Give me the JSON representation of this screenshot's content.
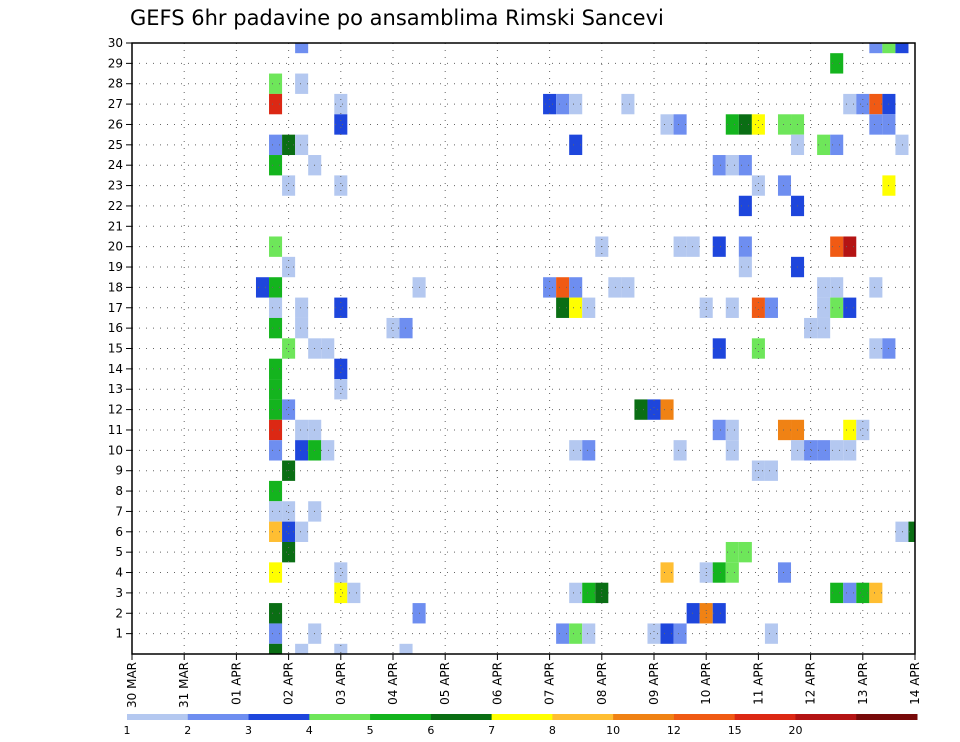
{
  "chart_data": {
    "type": "heatmap",
    "title": "GEFS 6hr padavine po ansamblima Rimski Sancevi",
    "xlabel": "",
    "ylabel": "",
    "x_tick_labels": [
      "30 MAR",
      "31 MAR",
      "01 APR",
      "02 APR",
      "03 APR",
      "04 APR",
      "05 APR",
      "06 APR",
      "07 APR",
      "08 APR",
      "09 APR",
      "10 APR",
      "11 APR",
      "12 APR",
      "13 APR",
      "14 APR"
    ],
    "x_unit": "6-hour step",
    "x_range": [
      0,
      60
    ],
    "y_tick_labels": [
      "1",
      "2",
      "3",
      "4",
      "5",
      "6",
      "7",
      "8",
      "9",
      "10",
      "11",
      "12",
      "13",
      "14",
      "15",
      "16",
      "17",
      "18",
      "19",
      "20",
      "21",
      "22",
      "23",
      "24",
      "25",
      "26",
      "27",
      "28",
      "29",
      "30"
    ],
    "y_range": [
      0,
      30
    ],
    "grid": true,
    "legend_placement": "bottom",
    "color_levels": [
      {
        "label": "1",
        "color": "#b4c8f0"
      },
      {
        "label": "2",
        "color": "#6e8ef0"
      },
      {
        "label": "3",
        "color": "#1e46dc"
      },
      {
        "label": "4",
        "color": "#6ee65a"
      },
      {
        "label": "5",
        "color": "#14b41e"
      },
      {
        "label": "6",
        "color": "#0a6e14"
      },
      {
        "label": "7",
        "color": "#ffff00"
      },
      {
        "label": "8",
        "color": "#ffbe32"
      },
      {
        "label": "10",
        "color": "#f08214"
      },
      {
        "label": "12",
        "color": "#f05a14"
      },
      {
        "label": "15",
        "color": "#dc2814"
      },
      {
        "label": "20",
        "color": "#b41414"
      },
      {
        "label": "",
        "color": "#780a0a"
      }
    ],
    "cells_note": "each cell: [member, 6h step index, level index into color_levels]",
    "cells": [
      [
        30,
        13,
        1
      ],
      [
        30,
        57,
        1
      ],
      [
        30,
        58,
        3
      ],
      [
        30,
        59,
        2
      ],
      [
        29,
        54,
        4
      ],
      [
        28,
        11,
        3
      ],
      [
        28,
        13,
        0
      ],
      [
        27,
        11,
        10
      ],
      [
        27,
        16,
        0
      ],
      [
        27,
        32,
        2
      ],
      [
        27,
        33,
        1
      ],
      [
        27,
        34,
        0
      ],
      [
        27,
        38,
        0
      ],
      [
        27,
        55,
        0
      ],
      [
        27,
        56,
        1
      ],
      [
        27,
        57,
        9
      ],
      [
        27,
        58,
        2
      ],
      [
        26,
        16,
        2
      ],
      [
        26,
        41,
        0
      ],
      [
        26,
        42,
        1
      ],
      [
        26,
        46,
        4
      ],
      [
        26,
        47,
        5
      ],
      [
        26,
        48,
        6
      ],
      [
        26,
        50,
        3
      ],
      [
        26,
        51,
        3
      ],
      [
        26,
        57,
        1
      ],
      [
        26,
        58,
        1
      ],
      [
        25,
        11,
        1
      ],
      [
        25,
        12,
        5
      ],
      [
        25,
        13,
        0
      ],
      [
        25,
        34,
        2
      ],
      [
        25,
        51,
        0
      ],
      [
        25,
        53,
        3
      ],
      [
        25,
        54,
        1
      ],
      [
        25,
        59,
        0
      ],
      [
        24,
        11,
        4
      ],
      [
        24,
        14,
        0
      ],
      [
        24,
        45,
        1
      ],
      [
        24,
        46,
        0
      ],
      [
        24,
        47,
        1
      ],
      [
        23,
        12,
        0
      ],
      [
        23,
        16,
        0
      ],
      [
        23,
        48,
        0
      ],
      [
        23,
        50,
        1
      ],
      [
        23,
        58,
        6
      ],
      [
        22,
        47,
        2
      ],
      [
        22,
        51,
        2
      ],
      [
        20,
        11,
        3
      ],
      [
        20,
        36,
        0
      ],
      [
        20,
        42,
        0
      ],
      [
        20,
        43,
        0
      ],
      [
        20,
        45,
        2
      ],
      [
        20,
        47,
        1
      ],
      [
        20,
        54,
        9
      ],
      [
        20,
        55,
        11
      ],
      [
        19,
        12,
        0
      ],
      [
        19,
        47,
        0
      ],
      [
        19,
        51,
        2
      ],
      [
        18,
        10,
        2
      ],
      [
        18,
        11,
        4
      ],
      [
        18,
        22,
        0
      ],
      [
        18,
        32,
        1
      ],
      [
        18,
        33,
        9
      ],
      [
        18,
        34,
        1
      ],
      [
        18,
        37,
        0
      ],
      [
        18,
        38,
        0
      ],
      [
        18,
        53,
        0
      ],
      [
        18,
        54,
        0
      ],
      [
        18,
        57,
        0
      ],
      [
        17,
        11,
        0
      ],
      [
        17,
        13,
        0
      ],
      [
        17,
        16,
        2
      ],
      [
        17,
        33,
        5
      ],
      [
        17,
        34,
        6
      ],
      [
        17,
        35,
        0
      ],
      [
        17,
        44,
        0
      ],
      [
        17,
        46,
        0
      ],
      [
        17,
        48,
        9
      ],
      [
        17,
        49,
        1
      ],
      [
        17,
        53,
        0
      ],
      [
        17,
        54,
        3
      ],
      [
        17,
        55,
        2
      ],
      [
        16,
        11,
        4
      ],
      [
        16,
        13,
        0
      ],
      [
        16,
        20,
        0
      ],
      [
        16,
        21,
        1
      ],
      [
        16,
        52,
        0
      ],
      [
        16,
        53,
        0
      ],
      [
        15,
        12,
        3
      ],
      [
        15,
        14,
        0
      ],
      [
        15,
        15,
        0
      ],
      [
        15,
        45,
        2
      ],
      [
        15,
        48,
        3
      ],
      [
        15,
        57,
        0
      ],
      [
        15,
        58,
        1
      ],
      [
        14,
        11,
        4
      ],
      [
        14,
        16,
        2
      ],
      [
        13,
        11,
        4
      ],
      [
        13,
        16,
        0
      ],
      [
        12,
        11,
        4
      ],
      [
        12,
        12,
        1
      ],
      [
        12,
        39,
        5
      ],
      [
        12,
        40,
        2
      ],
      [
        12,
        41,
        8
      ],
      [
        11,
        11,
        10
      ],
      [
        11,
        13,
        0
      ],
      [
        11,
        14,
        0
      ],
      [
        11,
        45,
        1
      ],
      [
        11,
        46,
        0
      ],
      [
        11,
        50,
        8
      ],
      [
        11,
        51,
        8
      ],
      [
        11,
        55,
        6
      ],
      [
        11,
        56,
        0
      ],
      [
        10,
        11,
        1
      ],
      [
        10,
        13,
        2
      ],
      [
        10,
        14,
        4
      ],
      [
        10,
        15,
        0
      ],
      [
        10,
        34,
        0
      ],
      [
        10,
        35,
        1
      ],
      [
        10,
        42,
        0
      ],
      [
        10,
        46,
        0
      ],
      [
        10,
        51,
        0
      ],
      [
        10,
        52,
        1
      ],
      [
        10,
        53,
        1
      ],
      [
        10,
        54,
        0
      ],
      [
        10,
        55,
        0
      ],
      [
        9,
        12,
        5
      ],
      [
        9,
        48,
        0
      ],
      [
        9,
        49,
        0
      ],
      [
        8,
        11,
        4
      ],
      [
        7,
        11,
        0
      ],
      [
        7,
        12,
        0
      ],
      [
        7,
        14,
        0
      ],
      [
        6,
        11,
        7
      ],
      [
        6,
        12,
        2
      ],
      [
        6,
        13,
        0
      ],
      [
        6,
        59,
        0
      ],
      [
        6,
        60,
        5
      ],
      [
        5,
        12,
        5
      ],
      [
        5,
        46,
        3
      ],
      [
        5,
        47,
        3
      ],
      [
        4,
        11,
        6
      ],
      [
        4,
        16,
        0
      ],
      [
        4,
        41,
        7
      ],
      [
        4,
        44,
        0
      ],
      [
        4,
        45,
        4
      ],
      [
        4,
        46,
        3
      ],
      [
        4,
        50,
        1
      ],
      [
        3,
        16,
        6
      ],
      [
        3,
        17,
        0
      ],
      [
        3,
        34,
        0
      ],
      [
        3,
        35,
        4
      ],
      [
        3,
        36,
        5
      ],
      [
        3,
        54,
        4
      ],
      [
        3,
        55,
        1
      ],
      [
        3,
        56,
        4
      ],
      [
        3,
        57,
        7
      ],
      [
        2,
        11,
        5
      ],
      [
        2,
        22,
        1
      ],
      [
        2,
        43,
        2
      ],
      [
        2,
        44,
        8
      ],
      [
        2,
        45,
        2
      ],
      [
        1,
        11,
        1
      ],
      [
        1,
        14,
        0
      ],
      [
        1,
        33,
        1
      ],
      [
        1,
        34,
        3
      ],
      [
        1,
        35,
        0
      ],
      [
        1,
        40,
        0
      ],
      [
        1,
        41,
        2
      ],
      [
        1,
        42,
        1
      ],
      [
        1,
        49,
        0
      ],
      [
        0,
        11,
        5
      ],
      [
        0,
        13,
        0
      ],
      [
        0,
        16,
        0
      ],
      [
        0,
        21,
        0
      ]
    ]
  }
}
